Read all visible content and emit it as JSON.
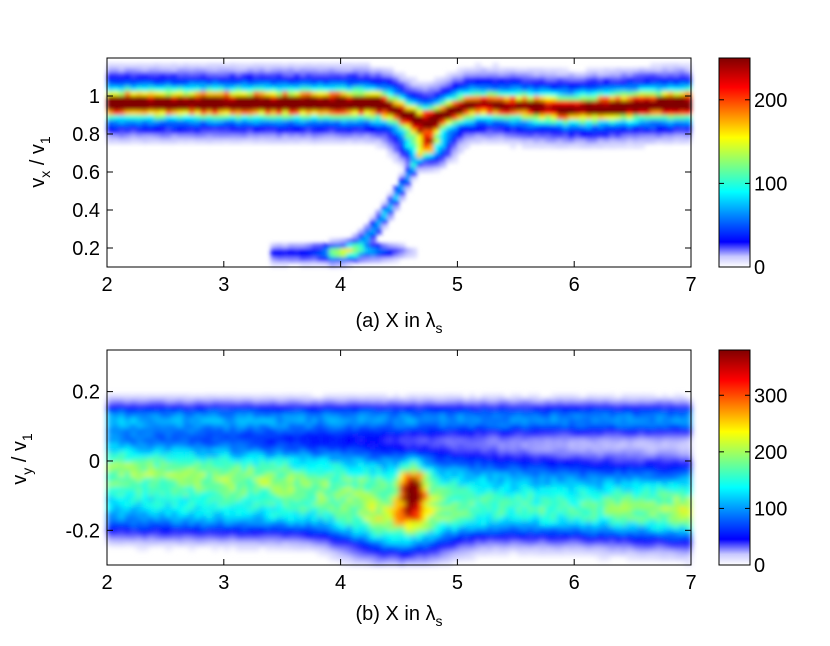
{
  "chart_data": [
    {
      "type": "heatmap",
      "panel": "a",
      "xlabel": "(a) X in λs",
      "xlabel_parts": {
        "prefix": "(a) X in ",
        "symbol": "λ",
        "sub": "s"
      },
      "ylabel_parts": {
        "var": "v",
        "var_sub": "x",
        "sep": " / ",
        "ref": "v",
        "ref_sub": "1"
      },
      "xlim": [
        2,
        7
      ],
      "ylim": [
        0.1,
        1.2
      ],
      "xticks": [
        "2",
        "3",
        "4",
        "5",
        "6",
        "7"
      ],
      "yticks": [
        "0.2",
        "0.4",
        "0.6",
        "0.8",
        "1"
      ],
      "colorbar": {
        "min": 0,
        "max": 250,
        "ticks": [
          "0",
          "100",
          "200"
        ]
      },
      "features": {
        "main_band": {
          "x": [
            2,
            7
          ],
          "center_y": 0.96,
          "peak_count": 210
        },
        "dip": {
          "x": 4.72,
          "min_y": 0.75,
          "peak_count": 225
        },
        "low_tail": {
          "x_start": 3.7,
          "x_end": 4.6,
          "y_low": 0.17,
          "count": 80
        }
      }
    },
    {
      "type": "heatmap",
      "panel": "b",
      "xlabel": "(b) X in λs",
      "xlabel_parts": {
        "prefix": "(b) X in ",
        "symbol": "λ",
        "sub": "s"
      },
      "ylabel_parts": {
        "var": "v",
        "var_sub": "y",
        "sep": " / ",
        "ref": "v",
        "ref_sub": "1"
      },
      "xlim": [
        2,
        7
      ],
      "ylim": [
        -0.3,
        0.32
      ],
      "xticks": [
        "2",
        "3",
        "4",
        "5",
        "6",
        "7"
      ],
      "yticks": [
        "-0.2",
        "0",
        "0.2"
      ],
      "colorbar": {
        "min": 0,
        "max": 380,
        "ticks": [
          "0",
          "100",
          "200",
          "300"
        ]
      },
      "features": {
        "main_band": {
          "x": [
            2,
            7
          ],
          "center_y": -0.03,
          "peak_count": 190
        },
        "hotspot": {
          "x": 4.62,
          "y": -0.09,
          "peak_count": 370
        },
        "dip": {
          "x": 4.6,
          "min_y": -0.25
        }
      }
    }
  ]
}
